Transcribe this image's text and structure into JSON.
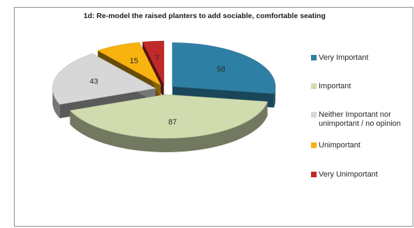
{
  "chart_data": {
    "type": "pie",
    "title": "1d: Re-model the raised planters to add sociable, comfortable seating",
    "categories": [
      "Very Important",
      "Important",
      "Neither Important nor unimportant / no opinion",
      "Unimportant",
      "Very Unimportant"
    ],
    "values": [
      58,
      87,
      43,
      15,
      7
    ],
    "colors": [
      "#2e7fa4",
      "#d0dcae",
      "#d7d7d7",
      "#f8b30f",
      "#c02a28"
    ],
    "legend_position": "right",
    "exploded": true,
    "three_d": true
  },
  "legend": {
    "items": [
      {
        "lines": [
          "Very Important"
        ],
        "color": "#2e7fa4"
      },
      {
        "lines": [
          "Important"
        ],
        "color": "#d0dcae"
      },
      {
        "lines": [
          "Neither Important nor",
          "unimportant / no opinion"
        ],
        "color": "#d7d7d7"
      },
      {
        "lines": [
          "Unimportant"
        ],
        "color": "#f8b30f"
      },
      {
        "lines": [
          "Very Unimportant"
        ],
        "color": "#c02a28"
      }
    ]
  }
}
